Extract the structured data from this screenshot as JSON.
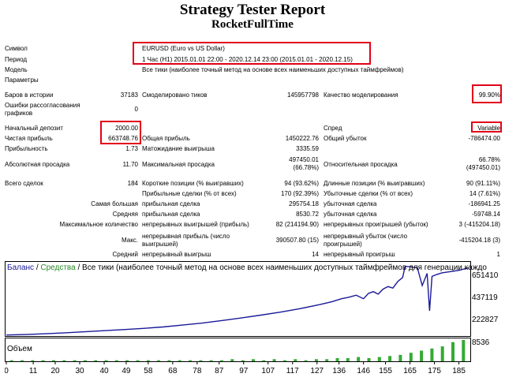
{
  "report": {
    "title": "Strategy Tester Report",
    "subtitle": "RocketFullTime",
    "symbol_label": "Символ",
    "symbol_value": "EURUSD (Euro vs US Dollar)",
    "period_label": "Период",
    "period_value": "1 Час (H1) 2015.01.01 22:00 - 2020.12.14 23:00 (2015.01.01 - 2020.12.15)",
    "model_label": "Модель",
    "model_value": "Все тики (наиболее точный метод на основе всех наименьших доступных таймфреймов)",
    "params_label": "Параметры",
    "bars_label": "Баров в истории",
    "bars_value": "37183",
    "ticks_label": "Смоделировано тиков",
    "ticks_value": "145957798",
    "quality_label": "Качество моделирования",
    "quality_value": "99.90%",
    "errors_label": "Ошибки рассогласования графиков",
    "errors_value": "0",
    "deposit_label": "Начальный депозит",
    "deposit_value": "2000.00",
    "spread_label": "Спред",
    "spread_value": "Variable",
    "net_label": "Чистая прибыль",
    "net_value": "663748.76",
    "gross_profit_label": "Общая прибыль",
    "gross_profit_value": "1450222.76",
    "gross_loss_label": "Общий убыток",
    "gross_loss_value": "-786474.00",
    "pf_label": "Прибыльность",
    "pf_value": "1.73",
    "expect_label": "Матожидание выигрыша",
    "expect_value": "3335.59",
    "abs_dd_label": "Абсолютная просадка",
    "abs_dd_value": "11.70",
    "max_dd_label": "Максимальная просадка",
    "max_dd_value1": "497450.01",
    "max_dd_value2": "(66.78%)",
    "rel_dd_label": "Относительная просадка",
    "rel_dd_value1": "66.78%",
    "rel_dd_value2": "(497450.01)",
    "total_label": "Всего сделок",
    "total_value": "184",
    "short_label": "Короткие позиции (% выигравших)",
    "short_value": "94 (93.62%)",
    "long_label": "Длинные позиции (% выигравших)",
    "long_value": "90 (91.11%)",
    "profit_trades_label": "Прибыльные сделки (% от всех)",
    "profit_trades_value": "170 (92.39%)",
    "loss_trades_label": "Убыточные сделки (% от всех)",
    "loss_trades_value": "14 (7.61%)",
    "largest_label": "Самая большая",
    "largest_profit_label": "прибыльная сделка",
    "largest_profit_value": "295754.18",
    "largest_loss_label": "убыточная сделка",
    "largest_loss_value": "-186941.25",
    "average_label": "Средняя",
    "avg_profit_label": "прибыльная сделка",
    "avg_profit_value": "8530.72",
    "avg_loss_label": "убыточная сделка",
    "avg_loss_value": "-59748.14",
    "max_count_label": "Максимальное количество",
    "cons_wins_label": "непрерывных выигрышей (прибыль)",
    "cons_wins_value": "82 (214194.90)",
    "cons_losses_label": "непрерывных проигрышей (убыток)",
    "cons_losses_value": "3 (-415204.18)",
    "max_label": "Макс.",
    "cons_profit_label": "непрерывная прибыль (число выигрышей)",
    "cons_profit_value": "390507.80 (15)",
    "cons_loss_label": "непрерывный убыток (число проигрышей)",
    "cons_loss_value": "-415204.18 (3)",
    "avg2_label": "Средний",
    "avg_cons_win_label": "непрерывный выигрыш",
    "avg_cons_win_value": "14",
    "avg_cons_loss_label": "непрерывный проигрыш",
    "avg_cons_loss_value": "1"
  },
  "chart_header": {
    "balance": "Баланс",
    "sep": " / ",
    "equity": "Средства",
    "rest": " / Все тики (наиболее точный метод на основе всех наименьших доступных таймфреймов для генерации каждо"
  },
  "chart_data": {
    "type": "line",
    "xlabel": "",
    "ylabel": "",
    "x_ticks": [
      "0",
      "11",
      "20",
      "30",
      "40",
      "49",
      "58",
      "68",
      "78",
      "87",
      "97",
      "107",
      "117",
      "127",
      "136",
      "146",
      "155",
      "165",
      "175",
      "185"
    ],
    "y_ticks": [
      "651410",
      "437119",
      "222827"
    ],
    "volume_tick": "8536",
    "volume_label": "Объем",
    "xlim": [
      0,
      189
    ],
    "ylim": [
      0,
      700000
    ],
    "colors": {
      "balance": "#1a1a99",
      "equity": "#2a8a2a",
      "volume": "#33aa33"
    },
    "series": [
      {
        "name": "Баланс",
        "x": [
          0,
          8,
          16,
          24,
          32,
          40,
          48,
          56,
          64,
          72,
          80,
          88,
          96,
          104,
          112,
          120,
          128,
          133,
          137,
          140,
          143,
          146,
          148,
          150,
          152,
          154,
          156,
          158,
          160,
          162,
          163,
          165,
          168,
          170,
          172,
          173,
          174,
          176,
          178,
          181,
          185,
          189
        ],
        "y": [
          2000,
          7000,
          15000,
          24000,
          34000,
          45000,
          56000,
          68000,
          82000,
          100000,
          120000,
          145000,
          170000,
          198000,
          228000,
          262000,
          302000,
          330000,
          360000,
          375000,
          395000,
          360000,
          412000,
          430000,
          405000,
          455000,
          480000,
          465000,
          530000,
          570000,
          680000,
          675000,
          665000,
          490000,
          610000,
          240000,
          580000,
          600000,
          615000,
          625000,
          640000,
          665000
        ]
      }
    ],
    "volume": [
      1,
      1,
      1,
      1,
      1,
      1,
      1,
      1,
      1,
      1,
      1,
      1,
      1,
      1,
      1,
      1,
      1,
      1,
      1,
      1,
      1,
      2,
      1,
      2,
      1,
      2,
      1,
      2,
      1,
      2,
      2,
      3,
      3,
      4,
      3,
      4,
      5,
      6,
      8,
      10,
      12,
      14,
      18,
      20
    ]
  }
}
